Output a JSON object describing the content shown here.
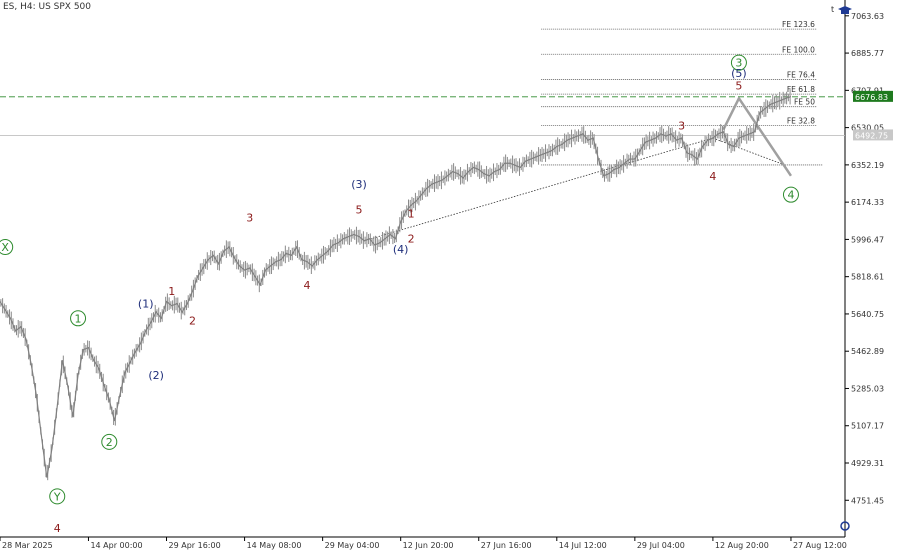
{
  "header": {
    "symbol": "ES, H4:  US SPX 500"
  },
  "top_right_icons": {
    "t_label": "t",
    "hat_icon": "graduation-cap-icon"
  },
  "chart_data": {
    "type": "line",
    "title": "",
    "ylim": [
      4600,
      7120
    ],
    "y_ticks": [
      "7063.63",
      "6885.77",
      "6707.91",
      "6530.05",
      "6352.19",
      "6174.33",
      "5996.47",
      "5818.61",
      "5640.75",
      "5462.89",
      "5285.03",
      "5107.17",
      "4929.31",
      "4751.45"
    ],
    "x_ticks": [
      {
        "label": "28 Mar 2025",
        "x": 0
      },
      {
        "label": "14 Apr 00:00",
        "x": 17
      },
      {
        "label": "29 Apr 16:00",
        "x": 32
      },
      {
        "label": "14 May 08:00",
        "x": 47
      },
      {
        "label": "29 May 04:00",
        "x": 62
      },
      {
        "label": "12 Jun 20:00",
        "x": 77
      },
      {
        "label": "27 Jun 16:00",
        "x": 92
      },
      {
        "label": "14 Jul 12:00",
        "x": 107
      },
      {
        "label": "29 Jul 04:00",
        "x": 122
      },
      {
        "label": "12 Aug 20:00",
        "x": 137
      },
      {
        "label": "27 Aug 12:00",
        "x": 152
      }
    ],
    "series": [
      {
        "x": [
          0,
          1,
          2,
          3,
          4,
          5,
          6,
          7,
          8,
          9,
          10,
          11,
          12,
          13,
          14,
          15,
          16,
          17,
          18,
          19,
          20,
          21,
          22,
          23,
          24,
          25,
          26,
          27,
          28,
          29,
          30,
          31,
          32,
          33,
          34,
          35,
          36,
          37,
          38,
          39,
          40,
          41,
          42,
          43,
          44,
          45,
          46,
          47,
          48,
          49,
          50,
          51,
          52,
          53,
          54,
          55,
          56,
          57,
          58,
          59,
          60,
          61,
          62,
          63,
          64,
          65,
          66,
          67,
          68,
          69,
          70,
          71,
          72,
          73,
          74,
          75,
          76,
          77,
          78,
          79,
          80,
          81,
          82,
          83,
          84,
          85,
          86,
          87,
          88,
          89,
          90,
          91,
          92,
          93,
          94,
          95,
          96,
          97,
          98,
          99,
          100,
          101,
          102,
          103,
          104,
          105,
          106,
          107,
          108,
          109,
          110,
          111,
          112,
          113,
          114,
          115,
          116,
          117,
          118,
          119,
          120,
          121,
          122,
          123,
          124,
          125,
          126,
          127,
          128,
          129,
          130,
          131,
          132,
          133,
          134,
          135,
          136,
          137,
          138,
          139,
          140,
          141,
          142,
          143,
          144,
          145,
          146,
          147,
          148,
          149,
          150,
          151,
          152
        ],
        "y": [
          5700,
          5660,
          5620,
          5560,
          5580,
          5520,
          5400,
          5250,
          5050,
          4860,
          5000,
          5200,
          5420,
          5300,
          5150,
          5350,
          5470,
          5480,
          5420,
          5380,
          5300,
          5230,
          5130,
          5250,
          5360,
          5410,
          5460,
          5500,
          5560,
          5600,
          5650,
          5620,
          5700,
          5680,
          5690,
          5650,
          5690,
          5750,
          5820,
          5860,
          5900,
          5920,
          5880,
          5940,
          5960,
          5910,
          5870,
          5850,
          5860,
          5820,
          5780,
          5850,
          5870,
          5890,
          5900,
          5930,
          5920,
          5960,
          5900,
          5890,
          5870,
          5900,
          5920,
          5940,
          5970,
          5980,
          6000,
          6010,
          6020,
          6010,
          5990,
          6000,
          5970,
          5980,
          6000,
          6020,
          6000,
          6080,
          6130,
          6160,
          6180,
          6210,
          6240,
          6260,
          6270,
          6280,
          6300,
          6320,
          6310,
          6290,
          6320,
          6340,
          6330,
          6310,
          6300,
          6320,
          6330,
          6360,
          6360,
          6350,
          6340,
          6370,
          6380,
          6390,
          6400,
          6410,
          6420,
          6440,
          6450,
          6470,
          6480,
          6490,
          6500,
          6470,
          6480,
          6380,
          6300,
          6310,
          6330,
          6340,
          6360,
          6380,
          6380,
          6420,
          6460,
          6470,
          6480,
          6500,
          6490,
          6500,
          6470,
          6480,
          6410,
          6400,
          6380,
          6440,
          6470,
          6480,
          6500,
          6510,
          6450,
          6440,
          6480,
          6490,
          6500,
          6510,
          6600,
          6620,
          6640,
          6650,
          6660,
          6670,
          6678
        ]
      }
    ],
    "current_price": "6492.75",
    "target_price": "6676.83",
    "fib_levels": [
      {
        "label": "FE 123.6",
        "value": 7000
      },
      {
        "label": "FE 100.0",
        "value": 6880
      },
      {
        "label": "FE 76.4",
        "value": 6760
      },
      {
        "label": "FE 61.8",
        "value": 6690
      },
      {
        "label": "FE 50",
        "value": 6630
      },
      {
        "label": "FE 32.8",
        "value": 6540
      }
    ],
    "fib_dashed_value": 6352,
    "projection": [
      {
        "x": 139,
        "y": 6520
      },
      {
        "x": 142,
        "y": 6670
      },
      {
        "x": 152,
        "y": 6300
      }
    ],
    "channel_line": [
      {
        "x": 70,
        "y": 5990
      },
      {
        "x": 137,
        "y": 6480
      }
    ],
    "channel_line2": [
      {
        "x": 137,
        "y": 6480
      },
      {
        "x": 151,
        "y": 6350
      }
    ],
    "wave_labels": [
      {
        "text": "X",
        "x": 1,
        "y": 5960,
        "style": "circle-green"
      },
      {
        "text": "1",
        "x": 15,
        "y": 5620,
        "style": "circle-green"
      },
      {
        "text": "2",
        "x": 21,
        "y": 5030,
        "style": "circle-green"
      },
      {
        "text": "Y",
        "x": 11,
        "y": 4770,
        "style": "circle-green"
      },
      {
        "text": "3",
        "x": 142,
        "y": 6840,
        "style": "circle-green"
      },
      {
        "text": "4",
        "x": 152,
        "y": 6210,
        "style": "circle-green"
      },
      {
        "text": "(1)",
        "x": 28,
        "y": 5690,
        "style": "paren-blue"
      },
      {
        "text": "(2)",
        "x": 30,
        "y": 5350,
        "style": "paren-blue"
      },
      {
        "text": "(3)",
        "x": 69,
        "y": 6260,
        "style": "paren-blue"
      },
      {
        "text": "(4)",
        "x": 77,
        "y": 5950,
        "style": "paren-blue"
      },
      {
        "text": "(5)",
        "x": 142,
        "y": 6790,
        "style": "paren-blue"
      },
      {
        "text": "1",
        "x": 33,
        "y": 5750,
        "style": "red"
      },
      {
        "text": "2",
        "x": 37,
        "y": 5610,
        "style": "red"
      },
      {
        "text": "3",
        "x": 48,
        "y": 6100,
        "style": "red"
      },
      {
        "text": "4",
        "x": 59,
        "y": 5780,
        "style": "red"
      },
      {
        "text": "5",
        "x": 69,
        "y": 6140,
        "style": "red"
      },
      {
        "text": "1",
        "x": 79,
        "y": 6120,
        "style": "red"
      },
      {
        "text": "2",
        "x": 79,
        "y": 6000,
        "style": "red"
      },
      {
        "text": "3",
        "x": 131,
        "y": 6540,
        "style": "red"
      },
      {
        "text": "4",
        "x": 137,
        "y": 6300,
        "style": "red"
      },
      {
        "text": "5",
        "x": 142,
        "y": 6730,
        "style": "red"
      },
      {
        "text": "4",
        "x": 11,
        "y": 4620,
        "style": "red"
      }
    ],
    "colors": {
      "price": "#808080",
      "green": "#2e8b2e",
      "blue": "#1f2e7a",
      "red": "#8b1a1a",
      "target_bg": "#1e7a1e",
      "current_bg": "#c8c8c8",
      "projection": "#a0a0a0"
    }
  }
}
